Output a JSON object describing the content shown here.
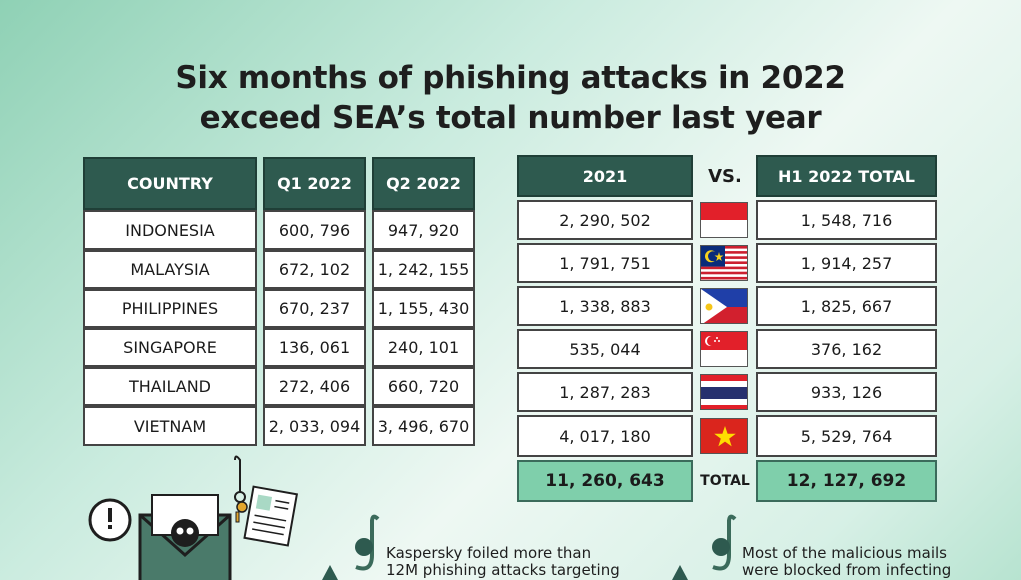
{
  "title": {
    "line1": "Six months of phishing attacks in 2022",
    "line2": "exceed SEA’s total number last year"
  },
  "left_table": {
    "headers": [
      "COUNTRY",
      "Q1 2022",
      "Q2 2022"
    ],
    "rows": [
      {
        "country": "INDONESIA",
        "q1": "600, 796",
        "q2": "947, 920"
      },
      {
        "country": "MALAYSIA",
        "q1": "672, 102",
        "q2": "1, 242, 155"
      },
      {
        "country": "PHILIPPINES",
        "q1": "670, 237",
        "q2": "1, 155, 430"
      },
      {
        "country": "SINGAPORE",
        "q1": "136, 061",
        "q2": "240, 101"
      },
      {
        "country": "THAILAND",
        "q1": "272, 406",
        "q2": "660, 720"
      },
      {
        "country": "VIETNAM",
        "q1": "2, 033, 094",
        "q2": "3, 496, 670"
      }
    ]
  },
  "right_table": {
    "header_2021": "2021",
    "vs": "VS.",
    "header_h1": "H1 2022 TOTAL",
    "rows": [
      {
        "v2021": "2, 290, 502",
        "flag": "indonesia-flag",
        "h1": "1, 548, 716"
      },
      {
        "v2021": "1, 791, 751",
        "flag": "malaysia-flag",
        "h1": "1, 914, 257"
      },
      {
        "v2021": "1, 338, 883",
        "flag": "philippines-flag",
        "h1": "1, 825, 667"
      },
      {
        "v2021": "535, 044",
        "flag": "singapore-flag",
        "h1": "376, 162"
      },
      {
        "v2021": "1, 287, 283",
        "flag": "thailand-flag",
        "h1": "933, 126"
      },
      {
        "v2021": "4, 017, 180",
        "flag": "vietnam-flag",
        "h1": "5, 529, 764"
      }
    ],
    "total_label": "TOTAL",
    "total_2021": "11, 260, 643",
    "total_h1": "12, 127, 692"
  },
  "bottom": {
    "text1_line1": "Kaspersky foiled more than",
    "text1_line2": "12M phishing attacks targeting",
    "text2_line1": "Most of the malicious mails",
    "text2_line2": "were blocked from infecting"
  },
  "colors": {
    "header_bg": "#2e5a4f",
    "total_bg": "#7fcfab",
    "accent": "#2e5a4f"
  }
}
